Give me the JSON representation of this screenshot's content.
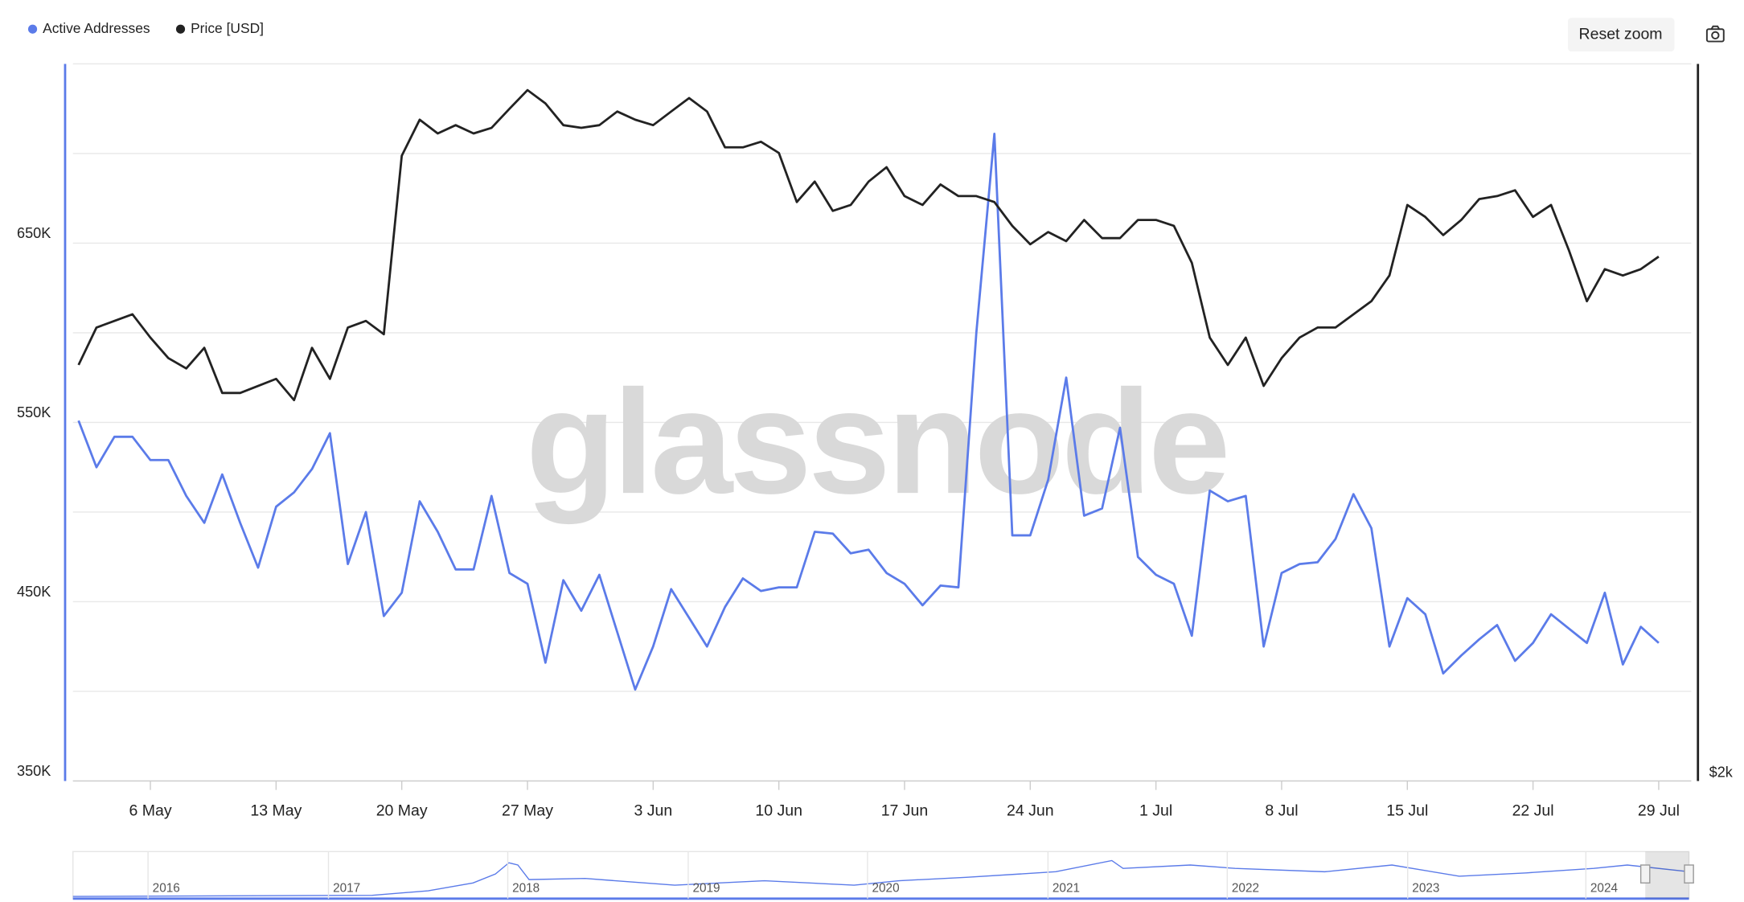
{
  "chart_data": {
    "type": "line",
    "legend_position": "top-left",
    "watermark": "glassnode",
    "reset_zoom": "Reset zoom",
    "categories": [
      null,
      null,
      null,
      null,
      "6 May",
      null,
      null,
      null,
      null,
      null,
      null,
      "13 May",
      null,
      null,
      null,
      null,
      null,
      null,
      "20 May",
      null,
      null,
      null,
      null,
      null,
      null,
      "27 May",
      null,
      null,
      null,
      null,
      null,
      null,
      "3 Jun",
      null,
      null,
      null,
      null,
      null,
      null,
      "10 Jun",
      null,
      null,
      null,
      null,
      null,
      null,
      "17 Jun",
      null,
      null,
      null,
      null,
      null,
      null,
      "24 Jun",
      null,
      null,
      null,
      null,
      null,
      null,
      "1 Jul",
      null,
      null,
      null,
      null,
      null,
      null,
      "8 Jul",
      null,
      null,
      null,
      null,
      null,
      null,
      "15 Jul",
      null,
      null,
      null,
      null,
      null,
      null,
      "22 Jul",
      null,
      null,
      null,
      null,
      null,
      null,
      "29 Jul"
    ],
    "series": [
      {
        "name": "Active Addresses",
        "color": "#5b7be9",
        "axis": "y",
        "values": [
          551000,
          525000,
          542000,
          542000,
          529000,
          529000,
          509000,
          494000,
          521000,
          494000,
          469000,
          503000,
          511000,
          524000,
          544000,
          471000,
          500000,
          442000,
          455000,
          506000,
          489000,
          468000,
          468000,
          509000,
          466000,
          460000,
          416000,
          462000,
          445000,
          465000,
          433000,
          401000,
          425000,
          457000,
          441000,
          425000,
          447000,
          463000,
          456000,
          458000,
          458000,
          489000,
          488000,
          477000,
          479000,
          466000,
          460000,
          448000,
          459000,
          458000,
          600000,
          711000,
          487000,
          487000,
          518000,
          575000,
          498000,
          502000,
          547000,
          475000,
          465000,
          460000,
          431000,
          512000,
          506000,
          509000,
          425000,
          466000,
          471000,
          472000,
          485000,
          510000,
          491000,
          425000,
          452000,
          443000,
          410000,
          420000,
          429000,
          437000,
          417000,
          427000,
          443000,
          435000,
          427000,
          455000,
          415000,
          436000,
          427000
        ]
      },
      {
        "name": "Price [USD]",
        "color": "#222222",
        "axis": "y2",
        "values": [
          2990,
          3100,
          3120,
          3140,
          3070,
          3010,
          2980,
          3040,
          2910,
          2910,
          2930,
          2950,
          2890,
          3040,
          2950,
          3100,
          3120,
          3080,
          3660,
          3790,
          3740,
          3770,
          3740,
          3760,
          3830,
          3900,
          3850,
          3770,
          3760,
          3770,
          3820,
          3790,
          3770,
          3820,
          3870,
          3820,
          3690,
          3690,
          3710,
          3670,
          3500,
          3570,
          3470,
          3490,
          3570,
          3620,
          3520,
          3490,
          3560,
          3520,
          3520,
          3500,
          3420,
          3360,
          3400,
          3370,
          3440,
          3380,
          3380,
          3440,
          3440,
          3420,
          3300,
          3070,
          2990,
          3070,
          2930,
          3010,
          3070,
          3100,
          3100,
          3140,
          3180,
          3260,
          3490,
          3450,
          3390,
          3440,
          3510,
          3520,
          3540,
          3450,
          3490,
          3340,
          3180,
          3280,
          3260,
          3280,
          3320
        ]
      }
    ],
    "ylim": [
      350000,
      750000
    ],
    "yticks": [
      {
        "value": 350000,
        "label": "350K"
      },
      {
        "value": 450000,
        "label": "450K"
      },
      {
        "value": 550000,
        "label": "550K"
      },
      {
        "value": 650000,
        "label": "650K"
      }
    ],
    "y_gridlines": [
      350000,
      400000,
      450000,
      500000,
      550000,
      600000,
      650000,
      700000,
      750000
    ],
    "y2lim": [
      2000,
      4000
    ],
    "y2_log": true,
    "y2ticks": [
      {
        "value": 2000,
        "label": "$2k"
      }
    ],
    "navigator_years": [
      "2016",
      "2017",
      "2018",
      "2019",
      "2020",
      "2021",
      "2022",
      "2023",
      "2024"
    ]
  }
}
